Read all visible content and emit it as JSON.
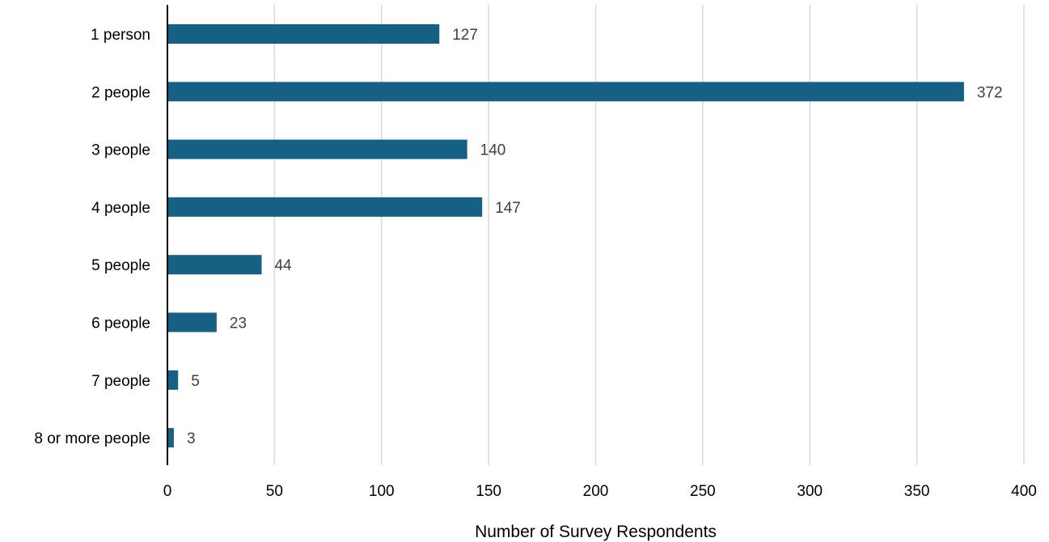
{
  "chart_data": {
    "type": "bar",
    "orientation": "horizontal",
    "categories": [
      "1 person",
      "2 people",
      "3 people",
      "4 people",
      "5 people",
      "6 people",
      "7 people",
      "8 or more people"
    ],
    "values": [
      127,
      372,
      140,
      147,
      44,
      23,
      5,
      3
    ],
    "xlabel": "Number of Survey Respondents",
    "ylabel": "",
    "xlim": [
      0,
      400
    ],
    "xticks": [
      "0",
      "50",
      "100",
      "150",
      "200",
      "250",
      "300",
      "350",
      "400"
    ],
    "grid": "vertical",
    "data_labels": true,
    "colors": {
      "bar": "#166083",
      "grid": "#d9d9d9",
      "axis": "#000000",
      "data_label": "#404040"
    }
  }
}
